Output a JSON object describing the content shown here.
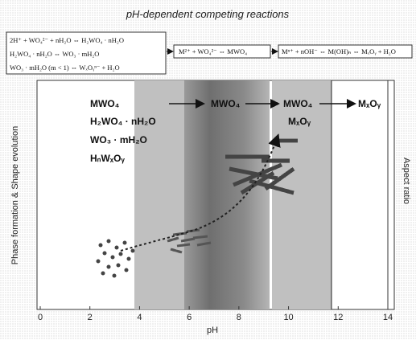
{
  "title": "pH-dependent competing reactions",
  "reactions": {
    "box1": [
      "2H⁺ + WO₄²⁻ + nH₂O ⇔ H₂WO₄ · nH₂O",
      "H₂WO₄ · nH₂O ⇔ WO₃ · mH₂O",
      "WO₃ · mH₂O (m < 1) ⇔ WₓOᵧⁿ⁻ + H₂O"
    ],
    "box2": "M²⁺ + WO₄²⁻ ⇔ MWO₄",
    "box3": "Mⁿ⁺ + nOH⁻ ⇔ M(OH)ₙ ⇔ MₓOᵧ + H₂O"
  },
  "phases": {
    "acidic": [
      "MWO₄",
      "H₂WO₄ · nH₂O",
      "WO₃ · mH₂O",
      "HₙWₓOᵧ"
    ],
    "neutral": "MWO₄",
    "basic": [
      "MWO₄",
      "MₓOᵧ"
    ],
    "strong_basic": "MₓOᵧ"
  },
  "axes": {
    "x_label": "pH",
    "y_label": "Phase formation & Shape evolution",
    "y2_label": "Aspect ratio",
    "xlim": [
      0,
      14
    ],
    "xticks": [
      0,
      2,
      4,
      6,
      8,
      10,
      12,
      14
    ]
  }
}
